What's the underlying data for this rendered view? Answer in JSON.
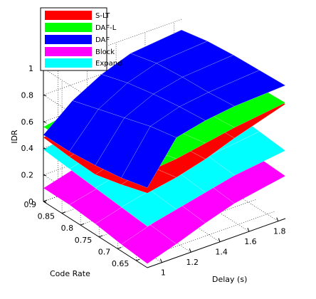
{
  "chart_data": {
    "type": "surface3d",
    "xlabel": "Delay (s)",
    "ylabel": "Code Rate",
    "zlabel": "IDR",
    "x_ticks": [
      "1",
      "1.2",
      "1.4",
      "1.6",
      "1.8"
    ],
    "y_ticks": [
      "0.9",
      "0.85",
      "0.8",
      "0.75",
      "0.7",
      "0.65"
    ],
    "z_ticks": [
      "0",
      "0.2",
      "0.4",
      "0.6",
      "0.8",
      "1"
    ],
    "xlim": [
      0.9,
      1.85
    ],
    "ylim": [
      0.62,
      0.9
    ],
    "zlim": [
      0,
      1
    ],
    "grid": true,
    "legend_position": "top-left",
    "legend": [
      {
        "name": "S-LT",
        "color": "#ff0000"
      },
      {
        "name": "DAF-L",
        "color": "#00ff00"
      },
      {
        "name": "DAF",
        "color": "#0000ff"
      },
      {
        "name": "Block",
        "color": "#ff00ff"
      },
      {
        "name": "Expand",
        "color": "#00ffff"
      }
    ],
    "series": [
      {
        "name": "S-LT",
        "color": "#ff0000",
        "x": [
          0.9,
          1.1,
          1.3,
          1.5,
          1.85
        ],
        "y": [
          0.62,
          0.69,
          0.76,
          0.83,
          0.9
        ],
        "z": [
          [
            0.56,
            0.6,
            0.66,
            0.74,
            0.86
          ],
          [
            0.5,
            0.56,
            0.64,
            0.73,
            0.85
          ],
          [
            0.45,
            0.52,
            0.61,
            0.72,
            0.85
          ],
          [
            0.46,
            0.51,
            0.6,
            0.71,
            0.85
          ],
          [
            0.48,
            0.53,
            0.62,
            0.72,
            0.85
          ]
        ]
      },
      {
        "name": "DAF-L",
        "color": "#00ff00",
        "x": [
          0.9,
          1.1,
          1.3,
          1.5,
          1.85
        ],
        "y": [
          0.62,
          0.69,
          0.76,
          0.83,
          0.9
        ],
        "z": [
          [
            0.72,
            0.74,
            0.78,
            0.82,
            0.87
          ],
          [
            0.66,
            0.69,
            0.74,
            0.8,
            0.86
          ],
          [
            0.6,
            0.64,
            0.71,
            0.78,
            0.86
          ],
          [
            0.56,
            0.61,
            0.68,
            0.76,
            0.86
          ],
          [
            0.56,
            0.6,
            0.67,
            0.76,
            0.86
          ]
        ]
      },
      {
        "name": "DAF",
        "color": "#0000ff",
        "x": [
          0.9,
          1.1,
          1.3,
          1.5,
          1.85
        ],
        "y": [
          0.62,
          0.69,
          0.76,
          0.83,
          0.9
        ],
        "z": [
          [
            0.6,
            0.9,
            0.95,
            0.98,
            1.0
          ],
          [
            0.55,
            0.86,
            0.93,
            0.96,
            0.99
          ],
          [
            0.52,
            0.8,
            0.9,
            0.95,
            0.98
          ],
          [
            0.5,
            0.74,
            0.86,
            0.93,
            0.96
          ],
          [
            0.5,
            0.68,
            0.8,
            0.88,
            0.92
          ]
        ]
      },
      {
        "name": "Block",
        "color": "#ff00ff",
        "x": [
          0.9,
          1.1,
          1.3,
          1.5,
          1.85
        ],
        "y": [
          0.62,
          0.69,
          0.76,
          0.83,
          0.9
        ],
        "z": [
          [
            0.03,
            0.1,
            0.18,
            0.25,
            0.32
          ],
          [
            0.05,
            0.12,
            0.2,
            0.27,
            0.33
          ],
          [
            0.08,
            0.14,
            0.22,
            0.28,
            0.34
          ],
          [
            0.1,
            0.15,
            0.22,
            0.29,
            0.34
          ],
          [
            0.1,
            0.16,
            0.23,
            0.29,
            0.34
          ]
        ]
      },
      {
        "name": "Expand",
        "color": "#00ffff",
        "x": [
          0.9,
          1.1,
          1.3,
          1.5,
          1.85
        ],
        "y": [
          0.62,
          0.69,
          0.76,
          0.83,
          0.9
        ],
        "z": [
          [
            0.31,
            0.36,
            0.41,
            0.46,
            0.51
          ],
          [
            0.33,
            0.38,
            0.43,
            0.48,
            0.53
          ],
          [
            0.35,
            0.4,
            0.45,
            0.5,
            0.55
          ],
          [
            0.37,
            0.42,
            0.47,
            0.52,
            0.57
          ],
          [
            0.39,
            0.44,
            0.49,
            0.54,
            0.59
          ]
        ]
      }
    ]
  }
}
